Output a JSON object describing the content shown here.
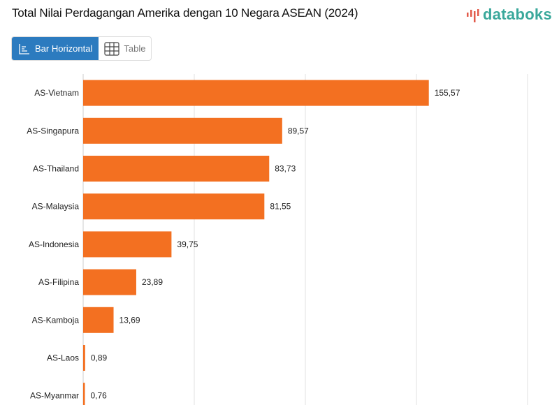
{
  "header": {
    "title": "Total Nilai Perdagangan Amerika dengan 10 Negara ASEAN (2024)",
    "logo": "databoks"
  },
  "view_toggle": {
    "options": [
      {
        "label": "Bar Horizontal",
        "icon": "bar-chart-icon",
        "active": true
      },
      {
        "label": "Table",
        "icon": "table-grid-icon",
        "active": false
      }
    ]
  },
  "colors": {
    "bar": "#f37021",
    "active_button": "#2c7bbf",
    "logo": "#3aa89b",
    "grid": "#e0e0e0"
  },
  "chart_data": {
    "type": "bar",
    "orientation": "horizontal",
    "title": "Total Nilai Perdagangan Amerika dengan 10 Negara ASEAN (2024)",
    "categories": [
      "AS-Vietnam",
      "AS-Singapura",
      "AS-Thailand",
      "AS-Malaysia",
      "AS-Indonesia",
      "AS-Filipina",
      "AS-Kamboja",
      "AS-Laos",
      "AS-Myanmar"
    ],
    "values": [
      155.57,
      89.57,
      83.73,
      81.55,
      39.75,
      23.89,
      13.69,
      0.89,
      0.76
    ],
    "labels": [
      "155,57",
      "89,57",
      "83,73",
      "81,55",
      "39,75",
      "23,89",
      "13,69",
      "0,89",
      "0,76"
    ],
    "xlim": [
      0,
      200
    ],
    "grid": true,
    "gridlines": [
      0,
      50,
      100,
      150,
      200
    ]
  }
}
